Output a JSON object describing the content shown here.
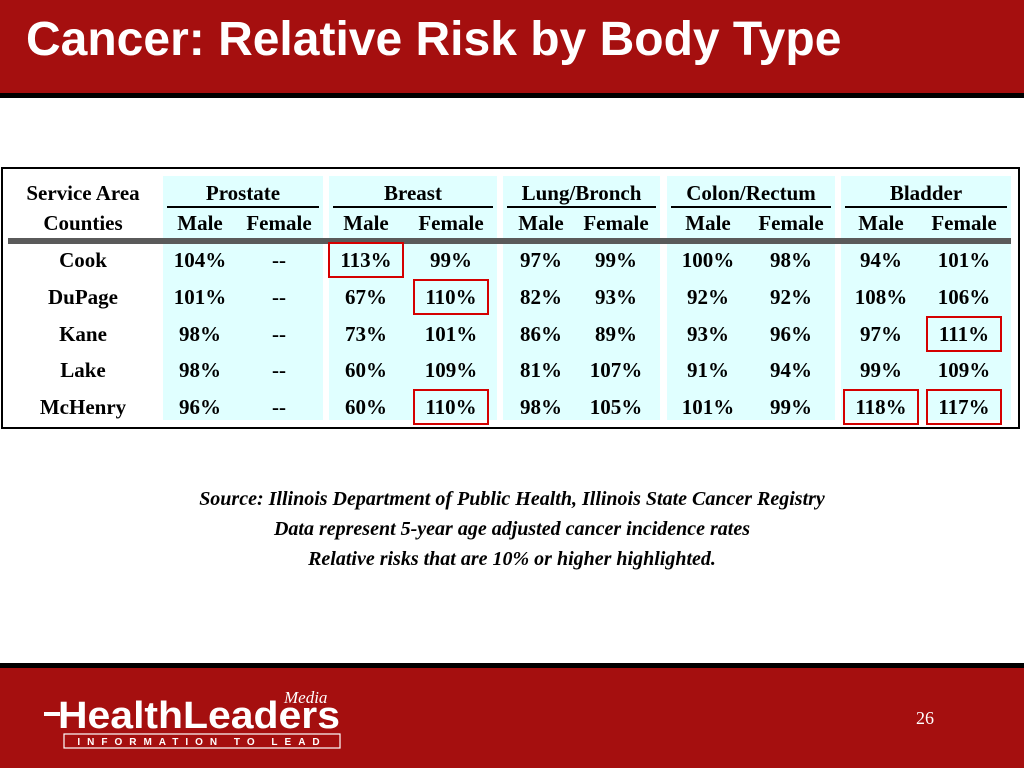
{
  "title": "Cancer: Relative Risk by Body Type",
  "table": {
    "row_header_line1": "Service Area",
    "row_header_line2": "Counties",
    "sites": [
      "Prostate",
      "Breast",
      "Lung/Bronch",
      "Colon/Rectum",
      "Bladder"
    ],
    "subheaders": [
      "Male",
      "Female",
      "Male",
      "Female",
      "Male",
      "Female",
      "Male",
      "Female",
      "Male",
      "Female"
    ],
    "rows": [
      {
        "county": "Cook",
        "values": [
          "104%",
          "--",
          "113%",
          "99%",
          "97%",
          "99%",
          "100%",
          "98%",
          "94%",
          "101%"
        ]
      },
      {
        "county": "DuPage",
        "values": [
          "101%",
          "--",
          "67%",
          "110%",
          "82%",
          "93%",
          "92%",
          "92%",
          "108%",
          "106%"
        ]
      },
      {
        "county": "Kane",
        "values": [
          "98%",
          "--",
          "73%",
          "101%",
          "86%",
          "89%",
          "93%",
          "96%",
          "97%",
          "111%"
        ]
      },
      {
        "county": "Lake",
        "values": [
          "98%",
          "--",
          "60%",
          "109%",
          "81%",
          "107%",
          "91%",
          "94%",
          "99%",
          "109%"
        ]
      },
      {
        "county": "McHenry",
        "values": [
          "96%",
          "--",
          "60%",
          "110%",
          "98%",
          "105%",
          "101%",
          "99%",
          "118%",
          "117%"
        ]
      }
    ],
    "highlighted": [
      {
        "row": 0,
        "col": 2
      },
      {
        "row": 1,
        "col": 3
      },
      {
        "row": 2,
        "col": 9
      },
      {
        "row": 4,
        "col": 3
      },
      {
        "row": 4,
        "col": 8
      },
      {
        "row": 4,
        "col": 9
      }
    ],
    "band_color": "#e0ffff",
    "highlight_color": "#d40000"
  },
  "notes": {
    "source": "Source: Illinois Department of Public Health, Illinois State Cancer Registry",
    "line2": "Data represent 5-year age adjusted cancer incidence rates",
    "line3": "Relative risks that are 10% or higher highlighted."
  },
  "footer": {
    "logo_main": "HealthLeaders",
    "logo_media": "Media",
    "logo_tagline": "INFORMATION TO LEAD",
    "page_number": "26"
  },
  "colors": {
    "brand_red": "#a50f0f",
    "rule_black": "#000000"
  }
}
